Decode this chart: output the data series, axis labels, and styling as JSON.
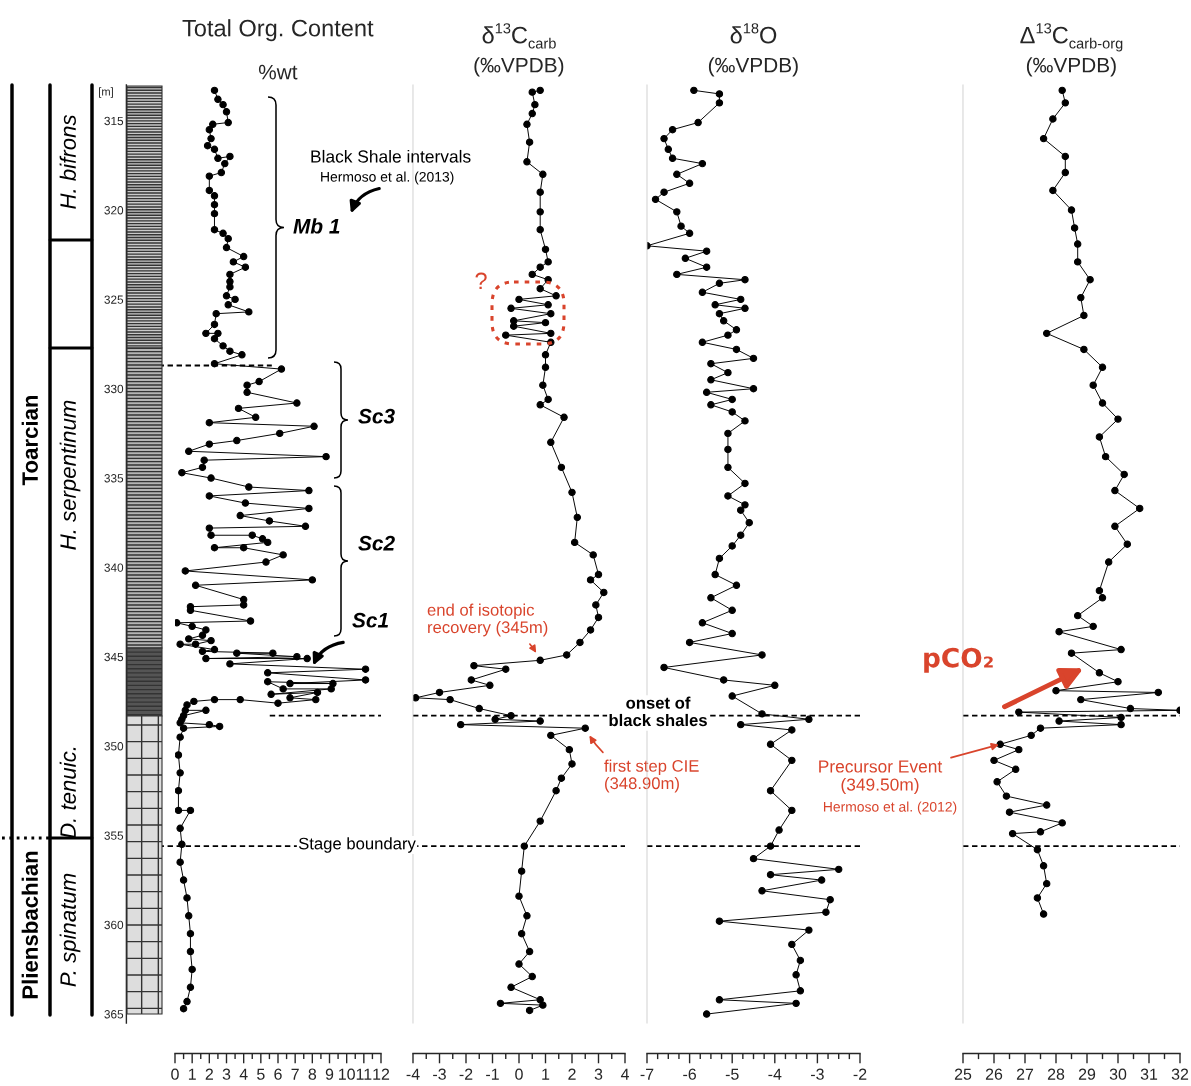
{
  "chart_data": [
    {
      "type": "line",
      "title": "Total Org. Content",
      "subtitle": "%wt",
      "ylabel": "[m]",
      "xlim": [
        0,
        12
      ],
      "xticks": [
        0,
        1,
        2,
        3,
        4,
        5,
        6,
        7,
        8,
        9,
        10,
        11,
        12
      ],
      "ylim": [
        365.5,
        313
      ],
      "yticks": [
        315,
        320,
        325,
        330,
        335,
        340,
        345,
        350,
        355,
        360,
        365
      ],
      "marker": "circle",
      "line_style": "solid",
      "series": [
        {
          "color": "#000000",
          "x": [
            2.3,
            2.5,
            2.8,
            3.0,
            3.1,
            2.2,
            2.0,
            2.1,
            1.9,
            2.3,
            2.5,
            3.2,
            2.9,
            2.7,
            2.0,
            2.0,
            2.3,
            2.3,
            2.3,
            2.3,
            2.8,
            3.1,
            3.0,
            4.0,
            3.4,
            4.1,
            3.2,
            3.2,
            3.2,
            3.0,
            3.5,
            3.1,
            4.3,
            2.4,
            2.3,
            1.8,
            2.5,
            2.3,
            2.8,
            3.2,
            3.9,
            2.3,
            6.2,
            4.9,
            4.2,
            4.2,
            7.1,
            3.7,
            4.7,
            2.0,
            8.1,
            6.1,
            3.6,
            2.0,
            0.8,
            8.8,
            1.7,
            1.6,
            0.4,
            2.1,
            4.3,
            7.8,
            2.0,
            4.1,
            7.8,
            3.8,
            5.5,
            7.6,
            2.0,
            2.1,
            4.5,
            5.1,
            5.4,
            2.3,
            4.0,
            6.3,
            5.3,
            0.6,
            8.0,
            1.2,
            4.0,
            4.0,
            0.9,
            0.9,
            4.4,
            0.1,
            1.0,
            1.8,
            1.6,
            0.8,
            2.1,
            1.2,
            0.3,
            2.3,
            1.6,
            5.7,
            3.6,
            7.1,
            1.8,
            7.7,
            3.2,
            11.1,
            5.4,
            11.1,
            6.7,
            9.2,
            5.4,
            6.3,
            9.1,
            5.6,
            8.3,
            6.7,
            8.2,
            6.0,
            3.8,
            2.3,
            1.1,
            0.7,
            0.6,
            1.8,
            0.5,
            0.4,
            0.3,
            2.0,
            2.6,
            0.5,
            0.3,
            0.2,
            0.3,
            0.2,
            0.2,
            0.9,
            0.3,
            0.4,
            0.3,
            0.5,
            0.7,
            0.8,
            0.9,
            0.9,
            1.0,
            0.9,
            0.7,
            0.5
          ],
          "values": [
            313.3,
            313.8,
            314.1,
            314.5,
            315.1,
            315.2,
            315.5,
            316.0,
            316.4,
            316.6,
            317.1,
            317.0,
            317.4,
            317.9,
            318.1,
            318.9,
            319.2,
            319.7,
            320.2,
            321.1,
            321.3,
            321.6,
            322.1,
            322.6,
            322.9,
            323.2,
            323.6,
            324.0,
            324.3,
            324.8,
            325.0,
            325.3,
            325.7,
            325.8,
            326.4,
            326.9,
            326.9,
            327.2,
            327.6,
            327.9,
            328.1,
            328.6,
            328.9,
            329.6,
            329.8,
            330.2,
            330.8,
            331.1,
            331.6,
            331.9,
            332.1,
            332.5,
            332.9,
            333.1,
            333.5,
            333.8,
            334.0,
            334.4,
            334.7,
            335.0,
            335.5,
            335.7,
            336.0,
            336.4,
            336.7,
            337.1,
            337.4,
            337.7,
            337.8,
            338.2,
            338.2,
            338.4,
            338.6,
            338.9,
            338.9,
            339.3,
            339.7,
            340.2,
            340.7,
            341.0,
            341.8,
            342.1,
            342.2,
            342.4,
            343.0,
            343.1,
            343.3,
            343.5,
            343.8,
            344.0,
            344.1,
            344.3,
            344.3,
            344.6,
            344.7,
            344.8,
            344.8,
            345.0,
            345.1,
            345.1,
            345.4,
            345.7,
            345.9,
            346.3,
            346.5,
            346.5,
            346.4,
            346.8,
            346.8,
            347.1,
            347.0,
            347.3,
            347.4,
            347.6,
            347.4,
            347.4,
            347.5,
            347.7,
            348.0,
            348.0,
            348.3,
            348.5,
            348.7,
            348.8,
            348.9,
            349.0,
            349.5,
            350.5,
            351.5,
            352.5,
            353.6,
            353.6,
            354.6,
            355.5,
            356.5,
            357.5,
            358.5,
            359.5,
            360.5,
            361.5,
            362.5,
            363.5,
            364.3,
            364.7
          ]
        }
      ],
      "ref_lines": [
        {
          "axis": "y",
          "value": 328.7,
          "line_style": "dashed"
        },
        {
          "axis": "y",
          "value": 348.3,
          "line_style": "dashed"
        },
        {
          "axis": "y",
          "value": 355.6,
          "line_style": "dashed"
        }
      ],
      "annotations": [
        "Black Shale intervals",
        "Hermoso et al. (2013)",
        "Mb 1",
        "Sc3",
        "Sc2",
        "Sc1",
        "Stage boundary",
        "Toarcian",
        "Pliensbachian",
        "H. bifrons",
        "H. serpentinum",
        "D. tenuic.",
        "P. spinatum"
      ]
    },
    {
      "type": "line",
      "title": "δ$^{13}$C$_{carb}$",
      "subtitle": "(‰VPDB)",
      "xlim": [
        -4,
        4
      ],
      "xticks": [
        -4,
        -3,
        -2,
        -1,
        0,
        1,
        2,
        3,
        4
      ],
      "ylim": [
        365.5,
        313
      ],
      "tick_labels": "x",
      "marker": "circle",
      "line_style": "solid",
      "series": [
        {
          "color": "#000000",
          "x": [
            0.8,
            0.5,
            0.6,
            0.5,
            0.3,
            0.4,
            0.3,
            0.9,
            0.8,
            0.8,
            0.8,
            1.0,
            1.1,
            0.8,
            0.5,
            1.1,
            0.8,
            1.4,
            0.0,
            1.1,
            -0.3,
            1.2,
            -0.2,
            1.0,
            -0.2,
            1.2,
            -0.5,
            1.2,
            1.0,
            1.0,
            0.9,
            1.1,
            0.8,
            1.7,
            1.2,
            1.6,
            2.0,
            2.2,
            2.1,
            2.8,
            3.0,
            2.7,
            3.2,
            2.9,
            3.0,
            2.7,
            2.3,
            1.8,
            0.8,
            -1.7,
            -0.5,
            -1.8,
            -1.1,
            -3.0,
            -3.9,
            -2.6,
            -1.5,
            -0.3,
            -0.9,
            0.8,
            -2.2,
            2.5,
            1.2,
            1.9,
            2.0,
            1.6,
            1.4,
            0.8,
            0.2,
            0.1,
            0.0,
            0.3,
            0.1,
            0.4,
            0.0,
            0.5,
            -0.3,
            0.8,
            -0.7,
            0.9,
            0.4
          ],
          "values": [
            313.3,
            313.4,
            314.1,
            314.6,
            315.2,
            316.2,
            317.3,
            318.0,
            319.0,
            320.1,
            321.1,
            322.2,
            322.9,
            323.2,
            323.6,
            323.9,
            324.4,
            324.8,
            325.0,
            325.3,
            325.5,
            325.8,
            326.2,
            326.3,
            326.5,
            326.9,
            327.0,
            327.4,
            328.1,
            328.8,
            329.8,
            330.6,
            330.9,
            331.6,
            333.0,
            334.4,
            335.8,
            337.2,
            338.6,
            339.3,
            340.4,
            340.7,
            341.4,
            342.1,
            342.8,
            343.5,
            344.2,
            344.9,
            345.2,
            345.5,
            345.7,
            346.3,
            346.6,
            347.0,
            347.3,
            347.4,
            347.9,
            348.3,
            348.5,
            348.6,
            348.8,
            349.0,
            349.4,
            350.2,
            351.0,
            351.8,
            352.5,
            354.2,
            355.6,
            357.0,
            358.4,
            359.5,
            360.5,
            361.5,
            362.2,
            362.9,
            363.5,
            364.2,
            364.4,
            364.5,
            364.8
          ]
        }
      ],
      "ref_lines": [
        {
          "axis": "y",
          "value": 348.3,
          "line_style": "dashed"
        },
        {
          "axis": "y",
          "value": 355.6,
          "line_style": "dashed"
        }
      ],
      "annotations": [
        "?",
        {
          "text": "end of isotopic\nrecovery (345m)",
          "x": 0.8,
          "y": 345.2
        },
        "onset of\nblack shales",
        {
          "text": "first step CIE\n(348.90m)",
          "x": 2.5,
          "y": 349.0
        }
      ]
    },
    {
      "type": "line",
      "title": "δ$^{18}$O",
      "subtitle": "(‰VPDB)",
      "xlim": [
        -7,
        -2
      ],
      "xticks": [
        -7,
        -6,
        -5,
        -4,
        -3,
        -2
      ],
      "ylim": [
        365.5,
        313
      ],
      "tick_labels": "x",
      "marker": "circle",
      "line_style": "solid",
      "series": [
        {
          "color": "#000000",
          "x": [
            -5.9,
            -5.3,
            -5.3,
            -5.8,
            -6.4,
            -6.6,
            -6.5,
            -6.4,
            -5.7,
            -6.3,
            -6.0,
            -6.6,
            -6.8,
            -6.3,
            -6.2,
            -6.0,
            -7.0,
            -5.6,
            -6.1,
            -5.6,
            -6.3,
            -4.7,
            -5.3,
            -5.7,
            -4.8,
            -5.4,
            -4.7,
            -5.3,
            -5.2,
            -4.9,
            -5.1,
            -5.7,
            -4.9,
            -4.5,
            -5.5,
            -5.1,
            -5.5,
            -4.5,
            -5.6,
            -5.0,
            -5.5,
            -5.0,
            -4.7,
            -5.1,
            -5.1,
            -5.1,
            -4.7,
            -5.1,
            -4.7,
            -4.8,
            -4.6,
            -4.8,
            -5.0,
            -5.3,
            -5.4,
            -4.9,
            -5.5,
            -5.0,
            -5.7,
            -5.0,
            -6.0,
            -4.3,
            -6.6,
            -5.2,
            -4.0,
            -5.0,
            -4.3,
            -3.2,
            -4.8,
            -3.6,
            -4.1,
            -3.6,
            -4.1,
            -3.6,
            -3.9,
            -4.1,
            -4.5,
            -2.5,
            -4.1,
            -2.9,
            -4.3,
            -2.7,
            -2.8,
            -5.3,
            -3.2,
            -3.6,
            -3.4,
            -3.5,
            -3.4,
            -5.3,
            -3.5,
            -5.6
          ],
          "values": [
            313.3,
            313.5,
            314.0,
            315.1,
            315.5,
            316.0,
            316.6,
            317.1,
            317.4,
            318.0,
            318.5,
            319.0,
            319.4,
            320.1,
            320.9,
            321.3,
            322.0,
            322.3,
            322.7,
            323.2,
            323.6,
            323.9,
            324.1,
            324.6,
            325.0,
            325.3,
            325.5,
            325.8,
            326.2,
            326.7,
            327.0,
            327.4,
            327.8,
            328.3,
            328.6,
            329.1,
            329.5,
            330.0,
            330.2,
            330.6,
            330.9,
            331.3,
            331.8,
            332.5,
            333.4,
            334.4,
            335.3,
            336.0,
            336.5,
            336.8,
            337.5,
            338.2,
            338.8,
            339.5,
            340.4,
            341.0,
            341.7,
            342.4,
            343.1,
            343.7,
            344.2,
            344.9,
            345.6,
            346.3,
            346.6,
            347.2,
            348.2,
            348.5,
            348.8,
            349.1,
            349.9,
            350.8,
            352.5,
            353.6,
            354.7,
            355.6,
            356.3,
            356.9,
            357.2,
            357.5,
            358.1,
            358.6,
            359.3,
            359.8,
            360.3,
            361.1,
            362.0,
            362.8,
            363.7,
            364.2,
            364.4,
            365.0
          ]
        }
      ],
      "ref_lines": [
        {
          "axis": "y",
          "value": 348.3,
          "line_style": "dashed"
        },
        {
          "axis": "y",
          "value": 355.6,
          "line_style": "dashed"
        }
      ]
    },
    {
      "type": "line",
      "title": "Δ$^{13}$C$_{carb-org}$",
      "subtitle": "(‰VPDB)",
      "xlim": [
        25,
        32
      ],
      "xticks": [
        25,
        26,
        27,
        28,
        29,
        30,
        31,
        32
      ],
      "ylim": [
        365.5,
        313
      ],
      "tick_labels": "x",
      "marker": "circle",
      "line_style": "solid",
      "series": [
        {
          "color": "#000000",
          "x": [
            28.2,
            28.3,
            27.9,
            27.6,
            28.3,
            28.3,
            27.9,
            28.5,
            28.6,
            28.7,
            28.7,
            29.1,
            28.8,
            28.9,
            27.7,
            28.9,
            29.5,
            29.2,
            29.5,
            30.0,
            29.4,
            29.6,
            30.2,
            29.9,
            30.7,
            29.9,
            30.3,
            29.7,
            29.4,
            29.5,
            28.7,
            29.2,
            28.1,
            30.1,
            28.5,
            29.4,
            30.0,
            28.0,
            31.3,
            28.8,
            30.4,
            32.0,
            26.8,
            30.1,
            28.1,
            30.1,
            27.5,
            27.2,
            26.2,
            26.8,
            26.0,
            26.7,
            26.1,
            26.4,
            27.7,
            26.5,
            28.2,
            27.5,
            26.6,
            27.4,
            27.6,
            27.7,
            27.4,
            27.6
          ],
          "values": [
            313.3,
            314.0,
            314.9,
            316.0,
            317.0,
            317.9,
            318.9,
            320.0,
            321.0,
            321.9,
            322.9,
            323.9,
            324.9,
            325.9,
            326.9,
            327.8,
            328.8,
            329.8,
            330.8,
            331.7,
            332.7,
            333.8,
            334.8,
            335.7,
            336.7,
            337.7,
            338.7,
            339.7,
            341.3,
            341.7,
            342.7,
            343.3,
            343.6,
            344.6,
            344.8,
            345.9,
            346.4,
            346.9,
            347.0,
            347.4,
            347.9,
            348.0,
            348.1,
            348.4,
            348.6,
            348.8,
            349.0,
            349.4,
            349.9,
            350.2,
            350.8,
            351.3,
            352.0,
            352.8,
            353.3,
            353.7,
            354.3,
            354.8,
            354.9,
            355.8,
            356.7,
            357.7,
            358.5,
            359.4
          ]
        }
      ],
      "ref_lines": [
        {
          "axis": "y",
          "value": 348.3,
          "line_style": "dashed"
        },
        {
          "axis": "y",
          "value": 355.6,
          "line_style": "dashed"
        }
      ],
      "annotations": [
        "pCO₂",
        {
          "text": "Precursor Event\n(349.50m)",
          "x": 26.2,
          "y": 349.9
        },
        "Hermoso et al. (2012)"
      ]
    }
  ]
}
